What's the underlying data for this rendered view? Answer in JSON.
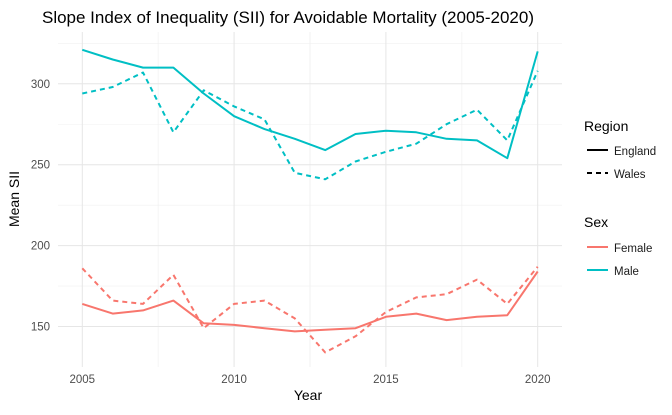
{
  "chart_data": {
    "type": "line",
    "title": "Slope Index of Inequality (SII) for Avoidable Mortality (2005-2020)",
    "xlabel": "Year",
    "ylabel": "Mean SII",
    "x": [
      2005,
      2006,
      2007,
      2008,
      2009,
      2010,
      2011,
      2012,
      2013,
      2014,
      2015,
      2016,
      2017,
      2018,
      2019,
      2020
    ],
    "xlim": [
      2004.2,
      2020.8
    ],
    "ylim": [
      125,
      332
    ],
    "x_ticks": [
      "2005",
      "2010",
      "2015",
      "2020"
    ],
    "y_ticks": [
      "150",
      "200",
      "250",
      "300"
    ],
    "grid": true,
    "legend_position": "right",
    "legend": {
      "region_title": "Region",
      "region_items": [
        {
          "label": "England",
          "linetype": "solid"
        },
        {
          "label": "Wales",
          "linetype": "dashed"
        }
      ],
      "sex_title": "Sex",
      "sex_items": [
        {
          "label": "Female",
          "color": "#F8766D"
        },
        {
          "label": "Male",
          "color": "#00BFC4"
        }
      ]
    },
    "series": [
      {
        "region": "England",
        "sex": "Male",
        "color": "#00BFC4",
        "linetype": "solid",
        "values": [
          321,
          315,
          310,
          310,
          294,
          280,
          272,
          266,
          259,
          269,
          271,
          270,
          266,
          265,
          254,
          320
        ]
      },
      {
        "region": "Wales",
        "sex": "Male",
        "color": "#00BFC4",
        "linetype": "dashed",
        "values": [
          294,
          298,
          307,
          270,
          296,
          286,
          278,
          245,
          241,
          252,
          258,
          263,
          275,
          284,
          265,
          308
        ]
      },
      {
        "region": "England",
        "sex": "Female",
        "color": "#F8766D",
        "linetype": "solid",
        "values": [
          164,
          158,
          160,
          166,
          152,
          151,
          149,
          147,
          148,
          149,
          156,
          158,
          154,
          156,
          157,
          184
        ]
      },
      {
        "region": "Wales",
        "sex": "Female",
        "color": "#F8766D",
        "linetype": "dashed",
        "values": [
          186,
          166,
          164,
          182,
          149,
          164,
          166,
          155,
          134,
          144,
          159,
          168,
          170,
          179,
          164,
          187
        ]
      }
    ]
  }
}
